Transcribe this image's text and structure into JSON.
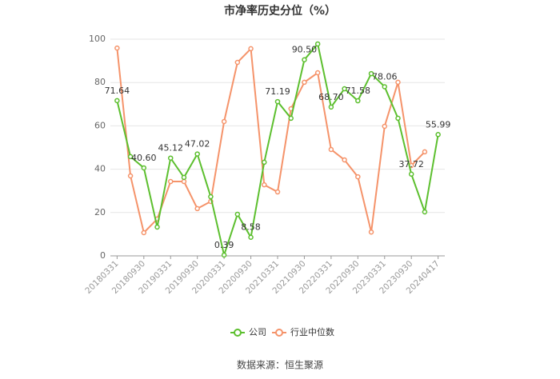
{
  "chart_data": {
    "type": "line",
    "title": "市净率历史分位（%）",
    "categories": [
      "20180331",
      null,
      "20180930",
      null,
      "20190331",
      null,
      "20190930",
      null,
      "20200331",
      null,
      "20200930",
      null,
      "20210331",
      null,
      "20210930",
      null,
      "20220331",
      null,
      "20220930",
      null,
      "20230331",
      null,
      "20230930",
      null,
      "20240417"
    ],
    "series": [
      {
        "name": "公司",
        "color": "#5cbf2e",
        "values": [
          71.64,
          45.8,
          40.6,
          13.3,
          45.12,
          36.2,
          47.02,
          27.3,
          0.39,
          19.2,
          8.58,
          43.2,
          71.19,
          63.5,
          90.5,
          97.8,
          68.7,
          77.1,
          71.58,
          84.1,
          78.06,
          63.5,
          37.72,
          20.3,
          55.99
        ],
        "value_labels": [
          "71.64",
          null,
          "40.60",
          null,
          "45.12",
          null,
          "47.02",
          null,
          "0.39",
          null,
          "8.58",
          null,
          "71.19",
          null,
          "90.50",
          null,
          "68.70",
          null,
          "71.58",
          null,
          "78.06",
          null,
          "37.72",
          null,
          "55.99"
        ]
      },
      {
        "name": "行业中位数",
        "color": "#f5936a",
        "values": [
          95.9,
          36.9,
          10.7,
          17,
          34.3,
          34.3,
          21.8,
          25.1,
          62,
          89.3,
          95.6,
          32.8,
          29.5,
          67.9,
          80.1,
          84.5,
          49.1,
          44.3,
          36.5,
          11,
          59.8,
          80.1,
          41.7,
          48,
          null
        ]
      }
    ],
    "ylim": [
      0,
      100
    ],
    "yticks": [
      0,
      20,
      40,
      60,
      80,
      100
    ],
    "grid": true,
    "legend": "bottom",
    "source": "数据来源：恒生聚源"
  }
}
